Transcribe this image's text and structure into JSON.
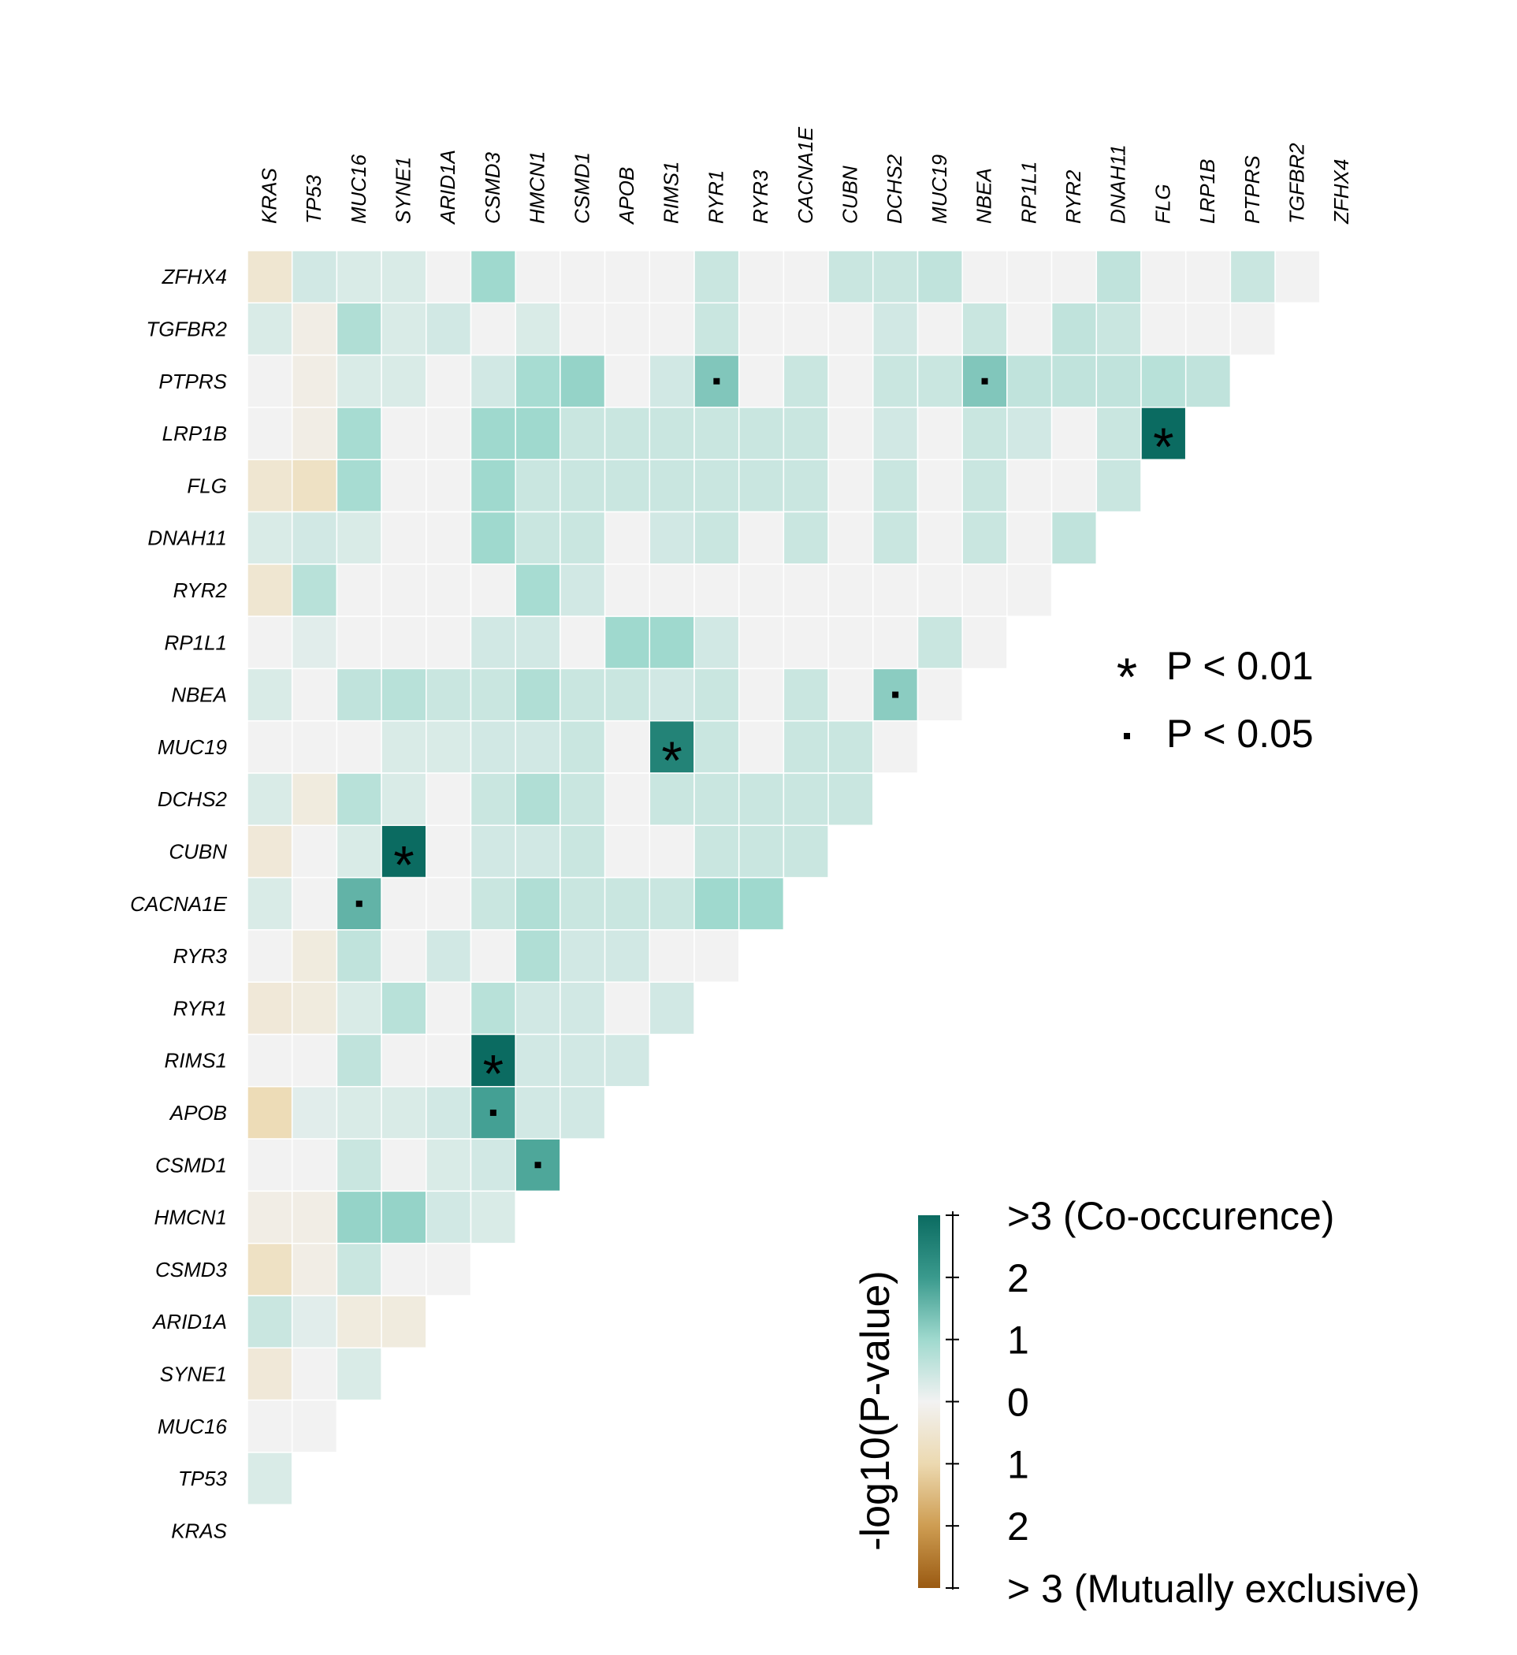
{
  "chart_data": {
    "type": "heatmap",
    "title": "",
    "genes": [
      "KRAS",
      "TP53",
      "MUC16",
      "SYNE1",
      "ARID1A",
      "CSMD3",
      "HMCN1",
      "CSMD1",
      "APOB",
      "RIMS1",
      "RYR1",
      "RYR3",
      "CACNA1E",
      "CUBN",
      "DCHS2",
      "MUC19",
      "NBEA",
      "RP1L1",
      "RYR2",
      "DNAH11",
      "FLG",
      "LRP1B",
      "PTPRS",
      "TGFBR2",
      "ZFHX4"
    ],
    "rows": [
      "ZFHX4",
      "TGFBR2",
      "PTPRS",
      "LRP1B",
      "FLG",
      "DNAH11",
      "RYR2",
      "RP1L1",
      "NBEA",
      "MUC19",
      "DCHS2",
      "CUBN",
      "CACNA1E",
      "RYR3",
      "RYR1",
      "RIMS1",
      "APOB",
      "CSMD1",
      "HMCN1",
      "CSMD3",
      "ARID1A",
      "SYNE1",
      "MUC16",
      "TP53",
      "KRAS"
    ],
    "value_description": "signed -log10(P-value); positive = co-occurrence, negative = mutual exclusivity",
    "values": {
      "ZFHX4": [
        -0.5,
        0.4,
        0.3,
        0.3,
        0,
        1.0,
        0,
        0,
        0,
        0,
        0.5,
        0,
        0,
        0.5,
        0.5,
        0.6,
        0,
        0,
        0,
        0.6,
        0,
        0,
        0.5,
        0
      ],
      "TGFBR2": [
        0.3,
        -0.2,
        0.8,
        0.3,
        0.4,
        0,
        0.3,
        0,
        0,
        0,
        0.5,
        0,
        0,
        0,
        0.4,
        0,
        0.5,
        0,
        0.6,
        0.5,
        0,
        0,
        0
      ],
      "PTPRS": [
        0,
        -0.2,
        0.3,
        0.3,
        0,
        0.4,
        0.9,
        1.1,
        0,
        0.4,
        1.3,
        0,
        0.5,
        0,
        0.5,
        0.5,
        1.3,
        0.6,
        0.6,
        0.6,
        0.7,
        0.6
      ],
      "LRP1B": [
        0,
        -0.2,
        0.9,
        0,
        0,
        1.0,
        1.0,
        0.5,
        0.5,
        0.5,
        0.5,
        0.5,
        0.5,
        0,
        0.4,
        0,
        0.5,
        0.4,
        0,
        0.5,
        3.2
      ],
      "FLG": [
        -0.5,
        -0.7,
        0.9,
        0,
        0,
        1.0,
        0.5,
        0.5,
        0.5,
        0.5,
        0.5,
        0.5,
        0.5,
        0,
        0.5,
        0,
        0.5,
        0,
        0,
        0.5
      ],
      "DNAH11": [
        0.3,
        0.4,
        0.3,
        0,
        0,
        1.0,
        0.5,
        0.5,
        0,
        0.4,
        0.5,
        0,
        0.5,
        0,
        0.5,
        0,
        0.5,
        0,
        0.6
      ],
      "RYR2": [
        -0.5,
        0.7,
        0,
        0,
        0,
        0,
        0.9,
        0.4,
        0,
        0,
        0,
        0,
        0,
        0,
        0,
        0,
        0,
        0
      ],
      "RP1L1": [
        0,
        0.2,
        0,
        0,
        0,
        0.4,
        0.4,
        0,
        1.0,
        1.0,
        0.4,
        0,
        0,
        0,
        0,
        0.5,
        0
      ],
      "NBEA": [
        0.3,
        0,
        0.6,
        0.7,
        0.5,
        0.5,
        0.8,
        0.5,
        0.5,
        0.4,
        0.5,
        0,
        0.5,
        0,
        1.2,
        0
      ],
      "MUC19": [
        0,
        0,
        0,
        0.3,
        0.3,
        0.4,
        0.4,
        0.5,
        0,
        2.5,
        0.5,
        0,
        0.5,
        0.5,
        0
      ],
      "DCHS2": [
        0.3,
        -0.3,
        0.7,
        0.3,
        0,
        0.5,
        0.8,
        0.5,
        0,
        0.5,
        0.5,
        0.5,
        0.5,
        0.5
      ],
      "CUBN": [
        -0.4,
        0,
        0.3,
        3.1,
        0,
        0.4,
        0.4,
        0.5,
        0,
        0,
        0.5,
        0.5,
        0.5
      ],
      "CACNA1E": [
        0.3,
        0,
        1.6,
        0,
        0,
        0.5,
        0.8,
        0.5,
        0.5,
        0.5,
        1.0,
        1.0
      ],
      "RYR3": [
        0,
        -0.3,
        0.6,
        0,
        0.4,
        0,
        0.8,
        0.4,
        0.4,
        0,
        0
      ],
      "RYR1": [
        -0.4,
        -0.3,
        0.3,
        0.7,
        0,
        0.7,
        0.4,
        0.4,
        0,
        0.4
      ],
      "RIMS1": [
        0,
        0,
        0.6,
        0,
        0,
        3.2,
        0.4,
        0.4,
        0.4
      ],
      "APOB": [
        -0.9,
        0.2,
        0.3,
        0.3,
        0.4,
        1.9,
        0.4,
        0.4
      ],
      "CSMD1": [
        0,
        0,
        0.5,
        0,
        0.3,
        0.4,
        1.8
      ],
      "HMCN1": [
        -0.2,
        -0.2,
        1.1,
        1.1,
        0.4,
        0.3
      ],
      "CSMD3": [
        -0.7,
        -0.2,
        0.5,
        0,
        0
      ],
      "ARID1A": [
        0.5,
        0.2,
        -0.3,
        -0.3
      ],
      "SYNE1": [
        -0.4,
        0,
        0.3
      ],
      "MUC16": [
        0,
        0
      ],
      "TP53": [
        0.3
      ],
      "KRAS": []
    },
    "significance": [
      {
        "row": "PTPRS",
        "col": "RYR1",
        "mark": "dot"
      },
      {
        "row": "PTPRS",
        "col": "NBEA",
        "mark": "dot"
      },
      {
        "row": "LRP1B",
        "col": "FLG",
        "mark": "star"
      },
      {
        "row": "NBEA",
        "col": "DCHS2",
        "mark": "dot"
      },
      {
        "row": "MUC19",
        "col": "RIMS1",
        "mark": "star"
      },
      {
        "row": "CUBN",
        "col": "SYNE1",
        "mark": "star"
      },
      {
        "row": "CACNA1E",
        "col": "MUC16",
        "mark": "dot"
      },
      {
        "row": "RIMS1",
        "col": "CSMD3",
        "mark": "star"
      },
      {
        "row": "APOB",
        "col": "CSMD3",
        "mark": "dot"
      },
      {
        "row": "CSMD1",
        "col": "HMCN1",
        "mark": "dot"
      }
    ],
    "significance_legend": [
      {
        "mark": "star",
        "label": "P < 0.01"
      },
      {
        "mark": "dot",
        "label": "P < 0.05"
      }
    ],
    "colorbar": {
      "title": "-log10(P-value)",
      "range": [
        -3,
        3
      ],
      "tick_labels": [
        ">3 (Co-occurence)",
        "2",
        "1",
        "0",
        "1",
        "2",
        "> 3 (Mutually exclusive)"
      ],
      "colors": {
        "high": "#0b6b61",
        "mid": "#f2f2f2",
        "low": "#9a5a12"
      }
    }
  }
}
